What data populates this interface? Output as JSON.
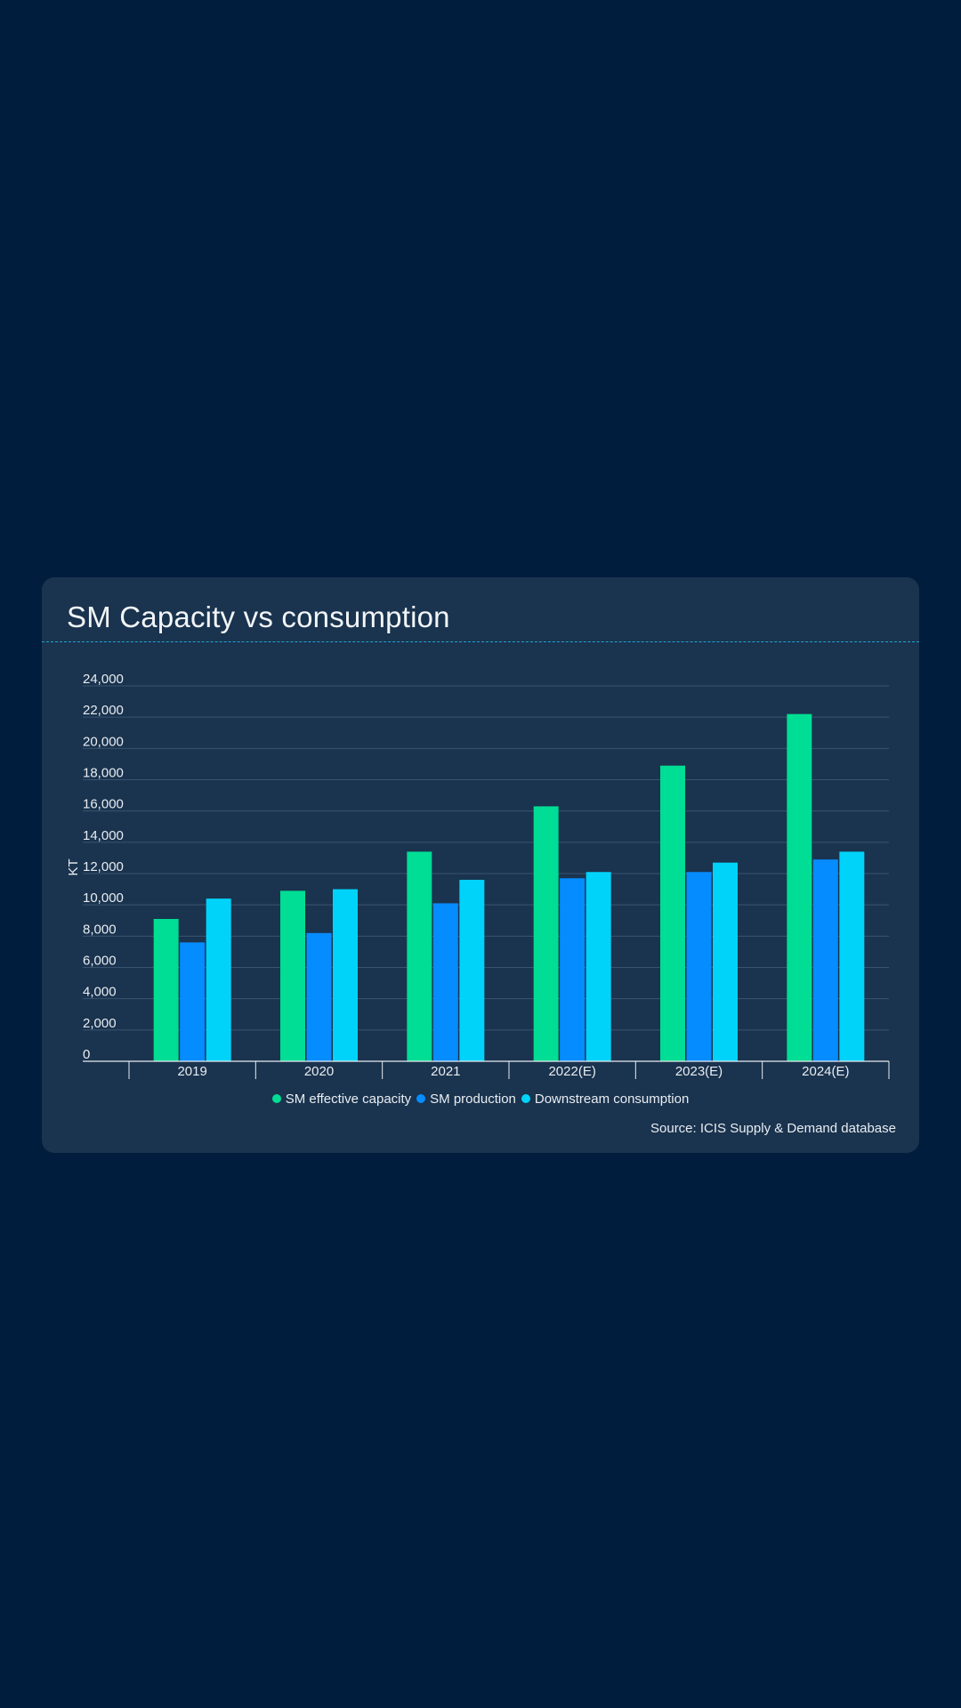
{
  "card": {
    "title": "SM Capacity vs consumption",
    "source": "Source: ICIS Supply & Demand database"
  },
  "colors": {
    "page_background": "#001d3d",
    "card_background": "#1a334e",
    "title_rule": "#1ea7d4",
    "gridline": "#3a5470",
    "axis": "#e8edf2"
  },
  "chart_data": {
    "type": "bar",
    "title": "SM Capacity vs consumption",
    "xlabel": "",
    "ylabel": "KT",
    "ylim": [
      0,
      24000
    ],
    "yticks": [
      0,
      2000,
      4000,
      6000,
      8000,
      10000,
      12000,
      14000,
      16000,
      18000,
      20000,
      22000,
      24000
    ],
    "ytick_labels": [
      "0",
      "2,000",
      "4,000",
      "6,000",
      "8,000",
      "10,000",
      "12,000",
      "14,000",
      "16,000",
      "18,000",
      "20,000",
      "22,000",
      "24,000"
    ],
    "categories": [
      "2019",
      "2020",
      "2021",
      "2022(E)",
      "2023(E)",
      "2024(E)"
    ],
    "series": [
      {
        "name": "SM effective capacity",
        "color": "#00dd94",
        "values": [
          9100,
          10900,
          13400,
          16300,
          18900,
          22200
        ]
      },
      {
        "name": "SM production",
        "color": "#058cff",
        "values": [
          7600,
          8200,
          10100,
          11700,
          12100,
          12900
        ]
      },
      {
        "name": "Downstream consumption",
        "color": "#00d3fa",
        "values": [
          10400,
          11000,
          11600,
          12100,
          12700,
          13400
        ]
      }
    ],
    "grid": true,
    "legend_position": "bottom-center"
  }
}
